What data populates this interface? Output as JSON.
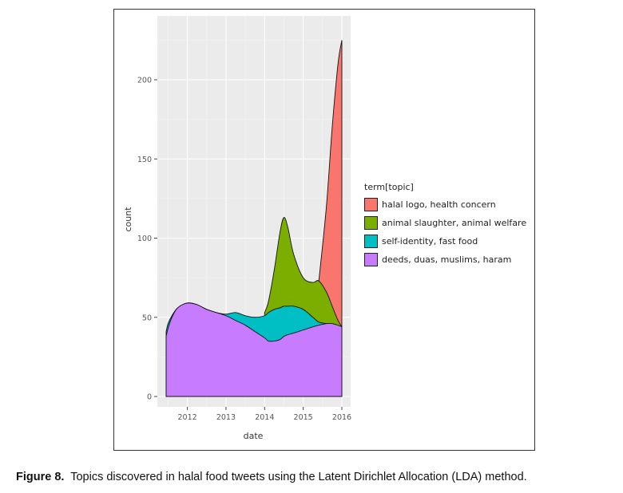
{
  "chart_data": {
    "type": "area",
    "xlabel": "date",
    "ylabel": "count",
    "xlim": [
      2011.45,
      2016.0
    ],
    "ylim": [
      0,
      225
    ],
    "x_ticks": [
      2012,
      2013,
      2014,
      2015,
      2016
    ],
    "y_ticks": [
      0,
      50,
      100,
      150,
      200
    ],
    "x_tick_labels": [
      "2012",
      "2013",
      "2014",
      "2015",
      "2016"
    ],
    "y_tick_labels": [
      "0",
      "50",
      "100",
      "150",
      "200"
    ],
    "grid": true,
    "legend_title": "term[topic]",
    "legend_position": "right",
    "x": [
      2011.45,
      2011.5,
      2011.6,
      2011.75,
      2012.0,
      2012.25,
      2012.5,
      2012.75,
      2013.0,
      2013.25,
      2013.5,
      2013.75,
      2014.0,
      2014.1,
      2014.25,
      2014.4,
      2014.5,
      2014.6,
      2014.75,
      2015.0,
      2015.25,
      2015.4,
      2015.6,
      2015.75,
      2015.9,
      2016.0
    ],
    "series": [
      {
        "name": "deeds, duas, muslims, haram",
        "color": "#C77CFF",
        "values": [
          38,
          43,
          50,
          56,
          59,
          58,
          55,
          53,
          51,
          48,
          45,
          41,
          37,
          35,
          35,
          36,
          38,
          39,
          40,
          42,
          44,
          45,
          46,
          46,
          45,
          44
        ]
      },
      {
        "name": "self-identity, fast food",
        "color": "#00BFC4",
        "values": [
          41,
          46,
          51,
          56,
          59,
          58,
          55,
          53,
          52,
          53,
          51,
          50,
          51,
          53,
          55,
          56,
          57,
          57,
          57,
          55,
          50,
          47,
          46,
          45,
          44,
          43
        ]
      },
      {
        "name": "animal slaughter, animal welfare",
        "color": "#7CAE00",
        "values": [
          null,
          null,
          null,
          null,
          null,
          null,
          null,
          null,
          null,
          null,
          null,
          null,
          53,
          60,
          80,
          104,
          113,
          107,
          90,
          75,
          72,
          73,
          66,
          57,
          48,
          44
        ]
      },
      {
        "name": "halal logo, health concern",
        "color": "#F8766D",
        "values": [
          null,
          null,
          null,
          null,
          null,
          null,
          null,
          null,
          null,
          null,
          null,
          null,
          null,
          null,
          null,
          null,
          null,
          null,
          null,
          null,
          null,
          72,
          120,
          170,
          210,
          225
        ]
      }
    ]
  },
  "caption": {
    "label": "Figure 8.",
    "text": "Topics discovered in halal food tweets using the Latent Dirichlet Allocation (LDA) method."
  }
}
